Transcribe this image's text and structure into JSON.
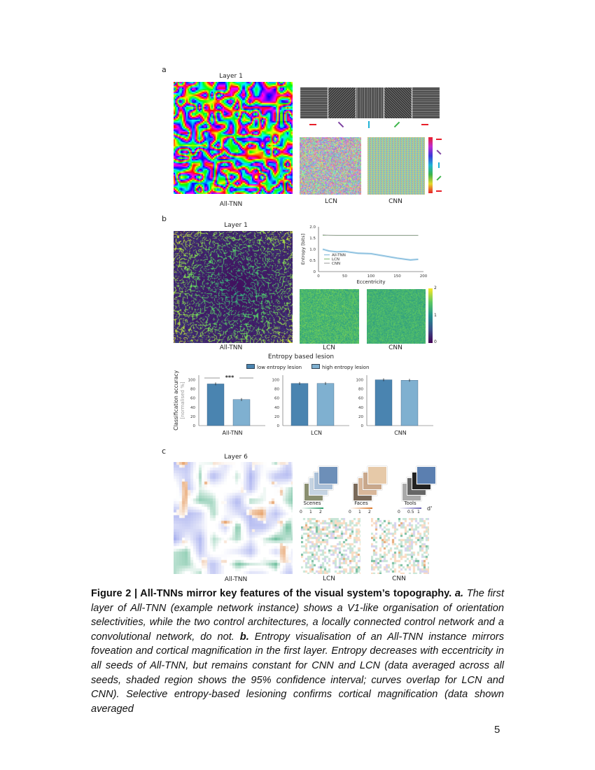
{
  "figure": {
    "panel_a": {
      "letter": "a",
      "layer_title": "Layer 1",
      "labels": [
        "All-TNN",
        "LCN",
        "CNN"
      ],
      "orientation_colors": [
        "#e8202a",
        "#7b3fa0",
        "#1fb3d6",
        "#3cb54a",
        "#e8202a"
      ]
    },
    "panel_b": {
      "letter": "b",
      "layer_title": "Layer 1",
      "labels": [
        "All-TNN",
        "LCN",
        "CNN"
      ],
      "colorbar_ticks": [
        "2",
        "1",
        "0"
      ],
      "lesion_title": "Entropy based lesion",
      "legend": [
        "low entropy lesion",
        "high entropy lesion"
      ]
    },
    "panel_c": {
      "letter": "c",
      "layer_title": "Layer 6",
      "labels": [
        "All-TNN",
        "LCN",
        "CNN"
      ],
      "categories": [
        {
          "name": "Scenes",
          "ticks": [
            "0",
            "1",
            "2"
          ],
          "color": "#2e9e6a"
        },
        {
          "name": "Faces",
          "ticks": [
            "0",
            "1",
            "2"
          ],
          "color": "#d9782a"
        },
        {
          "name": "Tools",
          "ticks": [
            "0",
            "0.5",
            "1"
          ],
          "color": "#6b63b5"
        }
      ],
      "dprime_label": "d'"
    }
  },
  "chart_data": [
    {
      "type": "line",
      "xlabel": "Eccentricity",
      "ylabel": "Entropy [bits]",
      "xlim": [
        0,
        200
      ],
      "ylim": [
        0,
        2.0
      ],
      "xticks": [
        "0",
        "50",
        "100",
        "150",
        "200"
      ],
      "yticks": [
        "0",
        "0.5",
        "1.0",
        "1.5",
        "2.0"
      ],
      "legend_position": "bottom-left",
      "x": [
        8,
        20,
        35,
        50,
        75,
        100,
        125,
        150,
        175,
        190
      ],
      "series": [
        {
          "name": "All-TNN",
          "color": "#6baed6",
          "values": [
            1.0,
            0.92,
            0.88,
            0.9,
            0.82,
            0.8,
            0.7,
            0.6,
            0.52,
            0.55
          ]
        },
        {
          "name": "LCN",
          "color": "#74b66a",
          "values": [
            1.62,
            1.62,
            1.61,
            1.61,
            1.61,
            1.61,
            1.61,
            1.61,
            1.61,
            1.61
          ]
        },
        {
          "name": "CNN",
          "color": "#9a9a9a",
          "values": [
            1.64,
            1.62,
            1.62,
            1.62,
            1.62,
            1.62,
            1.62,
            1.62,
            1.62,
            1.62
          ]
        }
      ]
    },
    {
      "type": "bar",
      "ylabel": "Classification accuracy",
      "ylabel2": "[normalised %]",
      "ylim": [
        0,
        110
      ],
      "yticks": [
        "0",
        "20",
        "40",
        "60",
        "80",
        "100"
      ],
      "groups": [
        "All-TNN",
        "LCN",
        "CNN"
      ],
      "series": [
        {
          "name": "low entropy lesion",
          "color": "#4a84b0",
          "values": [
            91,
            92,
            100
          ]
        },
        {
          "name": "high entropy lesion",
          "color": "#7fb0d0",
          "values": [
            57,
            92,
            99
          ]
        }
      ],
      "annotation": "***"
    }
  ],
  "caption": {
    "bold": "Figure 2 | All-TNNs mirror key features of the visual system’s topography.",
    "a_label": "a.",
    "a_text": " The first layer of All-TNN (example network instance) shows a V1-like organisation of orientation selectivities, while the two control architectures, a locally connected control network and a convolutional network, do not. ",
    "b_label": "b.",
    "b_text": " Entropy visualisation of an All-TNN instance mirrors foveation and cortical magnification in the first layer. Entropy decreases with eccentricity in all seeds of All-TNN, but remains constant for CNN and LCN (data averaged across all seeds, shaded region shows the 95% confidence interval; curves overlap for LCN and CNN). Selective entropy-based lesioning confirms cortical magnification (data shown averaged"
  },
  "page_number": "5"
}
